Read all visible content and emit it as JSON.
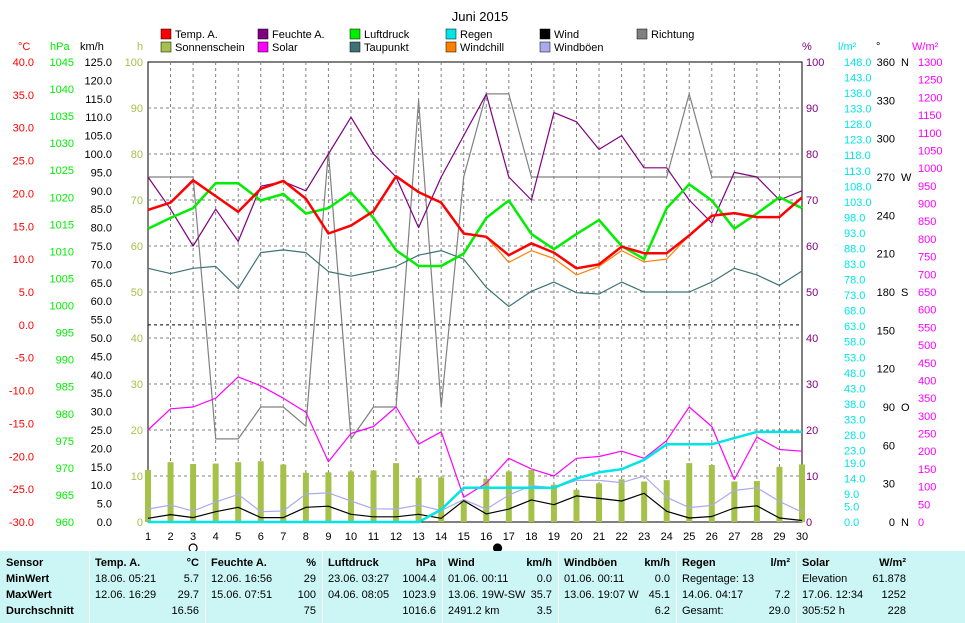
{
  "title": "Juni 2015",
  "colors": {
    "temp": "#ff0000",
    "humidity": "#800080",
    "pressure": "#00ee00",
    "rain": "#00e5e5",
    "wind": "#000000",
    "direction": "#808080",
    "sunshine": "#a6c14a",
    "solar": "#ff00ff",
    "dewpoint": "#3d7373",
    "windchill": "#ff8000",
    "gusts": "#aaaaee",
    "stats_bg": "#ccf6f6"
  },
  "legend": [
    {
      "key": "temp",
      "label": "Temp. A."
    },
    {
      "key": "humidity",
      "label": "Feuchte A."
    },
    {
      "key": "pressure",
      "label": "Luftdruck"
    },
    {
      "key": "rain",
      "label": "Regen"
    },
    {
      "key": "wind",
      "label": "Wind"
    },
    {
      "key": "direction",
      "label": "Richtung"
    },
    {
      "key": "sunshine",
      "label": "Sonnenschein"
    },
    {
      "key": "solar",
      "label": "Solar"
    },
    {
      "key": "dewpoint",
      "label": "Taupunkt"
    },
    {
      "key": "windchill",
      "label": "Windchill"
    },
    {
      "key": "gusts",
      "label": "Windböen"
    }
  ],
  "chart_data": {
    "type": "line",
    "title": "Juni 2015",
    "x": [
      1,
      2,
      3,
      4,
      5,
      6,
      7,
      8,
      9,
      10,
      11,
      12,
      13,
      14,
      15,
      16,
      17,
      18,
      19,
      20,
      21,
      22,
      23,
      24,
      25,
      26,
      27,
      28,
      29,
      30
    ],
    "xlim": [
      1,
      30
    ],
    "grid": true,
    "moon_phases": [
      {
        "day": 3,
        "phase": "full"
      },
      {
        "day": 16.5,
        "phase": "new"
      }
    ],
    "axes": {
      "temp": {
        "unit": "°C",
        "range": [
          -30,
          40
        ],
        "ticks": [
          40,
          35,
          30,
          25,
          20,
          15,
          10,
          5,
          0,
          -5,
          -10,
          -15,
          -20,
          -25,
          -30
        ],
        "labels": [
          "40.0",
          "35.0",
          "30.0",
          "25.0",
          "20.0",
          "15.0",
          "10.0",
          "5.0",
          "0.0",
          "-5.0",
          "-10.0",
          "-15.0",
          "-20.0",
          "-25.0",
          "-30.0"
        ]
      },
      "pressure": {
        "unit": "hPa",
        "range": [
          960,
          1045
        ],
        "labels": [
          "1045",
          "1040",
          "1035",
          "1030",
          "1025",
          "1020",
          "1015",
          "1010",
          "1005",
          "1000",
          "995",
          "990",
          "985",
          "980",
          "975",
          "970",
          "965",
          "960"
        ]
      },
      "wind": {
        "unit": "km/h",
        "range": [
          0,
          125
        ],
        "labels": [
          "125.0",
          "120.0",
          "115.0",
          "110.0",
          "105.0",
          "100.0",
          "95.0",
          "90.0",
          "85.0",
          "80.0",
          "75.0",
          "70.0",
          "65.0",
          "60.0",
          "55.0",
          "50.0",
          "45.0",
          "40.0",
          "35.0",
          "30.0",
          "25.0",
          "20.0",
          "15.0",
          "10.0",
          "5.0",
          "0.0"
        ]
      },
      "sunshine": {
        "unit": "h",
        "range": [
          0,
          100
        ],
        "labels": [
          "100",
          "90",
          "80",
          "70",
          "60",
          "50",
          "40",
          "30",
          "20",
          "10",
          "0"
        ]
      },
      "humidity": {
        "unit": "%",
        "range": [
          0,
          100
        ],
        "labels": [
          "100",
          "90",
          "80",
          "70",
          "60",
          "50",
          "40",
          "30",
          "20",
          "10",
          "0"
        ]
      },
      "rain": {
        "unit": "l/m²",
        "range": [
          0,
          148
        ],
        "labels": [
          "148.0",
          "143.0",
          "138.0",
          "133.0",
          "128.0",
          "123.0",
          "118.0",
          "113.0",
          "108.0",
          "103.0",
          "98.0",
          "93.0",
          "88.0",
          "83.0",
          "78.0",
          "73.0",
          "68.0",
          "63.0",
          "58.0",
          "53.0",
          "48.0",
          "43.0",
          "38.0",
          "33.0",
          "28.0",
          "23.0",
          "19.0",
          "14.0",
          "9.0",
          "5.0",
          "0.0"
        ]
      },
      "direction": {
        "unit": "°",
        "range": [
          0,
          360
        ],
        "labels": [
          {
            "v": 360,
            "t": "360",
            "d": "N"
          },
          {
            "v": 330,
            "t": "330",
            "d": ""
          },
          {
            "v": 300,
            "t": "300",
            "d": ""
          },
          {
            "v": 270,
            "t": "270",
            "d": "W"
          },
          {
            "v": 240,
            "t": "240",
            "d": ""
          },
          {
            "v": 210,
            "t": "210",
            "d": ""
          },
          {
            "v": 180,
            "t": "180",
            "d": "S"
          },
          {
            "v": 150,
            "t": "150",
            "d": ""
          },
          {
            "v": 120,
            "t": "120",
            "d": ""
          },
          {
            "v": 90,
            "t": "90",
            "d": "O"
          },
          {
            "v": 60,
            "t": "60",
            "d": ""
          },
          {
            "v": 30,
            "t": "30",
            "d": ""
          },
          {
            "v": 0,
            "t": "0",
            "d": "N"
          }
        ]
      },
      "solar": {
        "unit": "W/m²",
        "range": [
          0,
          1300
        ],
        "labels": [
          "1300",
          "1250",
          "1200",
          "1150",
          "1100",
          "1050",
          "1000",
          "950",
          "900",
          "850",
          "800",
          "750",
          "700",
          "650",
          "600",
          "550",
          "500",
          "450",
          "400",
          "350",
          "300",
          "250",
          "200",
          "150",
          "100",
          "50",
          "0"
        ]
      }
    },
    "series": [
      {
        "name": "Temp. A.",
        "key": "temp",
        "axis": "temp",
        "values": [
          17.5,
          18.6,
          22.0,
          19.6,
          17.2,
          20.7,
          21.9,
          19.2,
          13.9,
          15.1,
          17.3,
          22.6,
          20.2,
          18.6,
          13.9,
          13.4,
          10.6,
          12.4,
          11.0,
          8.6,
          9.2,
          11.9,
          10.9,
          10.9,
          13.6,
          16.6,
          17.0,
          16.4,
          16.4,
          19.4
        ]
      },
      {
        "name": "Feuchte A.",
        "key": "humidity",
        "axis": "humidity",
        "values": [
          75,
          68,
          60,
          68,
          61,
          73,
          74,
          72,
          80,
          88,
          80,
          75,
          64,
          75,
          84,
          93,
          75,
          70,
          89,
          87,
          81,
          84,
          77,
          77,
          70,
          65,
          76,
          75,
          70,
          72
        ]
      },
      {
        "name": "Luftdruck",
        "key": "pressure",
        "axis": "pressure",
        "values": [
          1014.2,
          1016.2,
          1018.0,
          1022.6,
          1022.6,
          1019.4,
          1020.6,
          1017.0,
          1018.0,
          1020.9,
          1016.2,
          1010.2,
          1007.3,
          1007.3,
          1009.6,
          1016.2,
          1019.4,
          1013.2,
          1010.4,
          1013.2,
          1015.8,
          1011.0,
          1008.6,
          1018.0,
          1022.4,
          1019.4,
          1014.2,
          1017.0,
          1020.0,
          1018.0
        ]
      },
      {
        "name": "Taupunkt",
        "key": "dewpoint",
        "axis": "temp",
        "values": [
          8.6,
          7.8,
          8.6,
          8.9,
          5.5,
          11.0,
          11.4,
          11.0,
          8.1,
          7.4,
          8.1,
          8.9,
          10.6,
          11.3,
          10.0,
          5.7,
          2.8,
          5.1,
          6.5,
          4.9,
          4.7,
          6.5,
          5.0,
          5.0,
          5.0,
          6.5,
          8.6,
          7.6,
          6.0,
          8.2
        ]
      },
      {
        "name": "Windchill",
        "key": "windchill",
        "axis": "temp",
        "values": [
          17.5,
          18.6,
          22.0,
          19.6,
          17.2,
          20.7,
          21.9,
          19.2,
          13.9,
          15.1,
          17.3,
          22.6,
          20.2,
          18.6,
          13.9,
          13.4,
          9.5,
          11.3,
          10.1,
          7.6,
          8.9,
          11.3,
          9.6,
          10.0,
          13.6,
          16.6,
          17.0,
          16.4,
          16.4,
          19.4
        ]
      },
      {
        "name": "Solar",
        "key": "solar",
        "axis": "solar",
        "values": [
          260,
          320,
          325,
          350,
          410,
          385,
          350,
          310,
          170,
          250,
          270,
          325,
          220,
          255,
          70,
          110,
          180,
          150,
          130,
          180,
          185,
          200,
          180,
          230,
          325,
          270,
          120,
          240,
          205,
          200
        ]
      },
      {
        "name": "Wind",
        "key": "wind",
        "axis": "wind",
        "values": [
          1.0,
          2.0,
          1.2,
          2.8,
          4.0,
          1.2,
          1.2,
          4.0,
          4.3,
          2.1,
          1.4,
          1.4,
          2.1,
          1.0,
          5.8,
          2.2,
          3.5,
          6.0,
          4.7,
          7.1,
          6.4,
          5.7,
          7.8,
          2.9,
          1.1,
          1.5,
          3.8,
          4.4,
          1.1,
          0.4
        ]
      },
      {
        "name": "Windböen",
        "key": "gusts",
        "axis": "wind",
        "values": [
          3.5,
          4.6,
          3.0,
          5.4,
          7.5,
          2.8,
          3.0,
          7.6,
          7.9,
          5.7,
          3.6,
          3.5,
          4.6,
          3.1,
          6.1,
          3.5,
          7.3,
          9.9,
          9.3,
          11.3,
          11.3,
          10.7,
          12.5,
          6.7,
          3.9,
          4.5,
          8.6,
          9.3,
          5.6,
          2.7
        ]
      },
      {
        "name": "Richtung",
        "key": "direction",
        "axis": "direction",
        "values": [
          270,
          270,
          270,
          65,
          65,
          90,
          90,
          75,
          290,
          65,
          90,
          90,
          330,
          90,
          270,
          335,
          335,
          270,
          270,
          270,
          270,
          270,
          270,
          270,
          335,
          270,
          270,
          270,
          270,
          270
        ]
      },
      {
        "name": "Regen",
        "key": "rain",
        "axis": "rain",
        "values": [
          0,
          0,
          0,
          0,
          0,
          0,
          0,
          0,
          0,
          0,
          0,
          0,
          0,
          4,
          11,
          11,
          11,
          11,
          11,
          14,
          16,
          17,
          20,
          25,
          25,
          25,
          27,
          29,
          29,
          29
        ]
      },
      {
        "name": "Sonnenschein",
        "key": "sunshine",
        "axis": "sunshine",
        "type": "bar",
        "values": [
          11.3,
          13.0,
          12.6,
          12.7,
          13.0,
          13.2,
          12.5,
          10.7,
          10.8,
          11.0,
          11.2,
          12.8,
          9.6,
          9.7,
          4.5,
          9.4,
          11.0,
          11.3,
          8.1,
          7.0,
          8.4,
          9.3,
          8.8,
          9.1,
          12.8,
          12.4,
          8.8,
          8.9,
          12.0,
          12.5
        ]
      }
    ]
  },
  "stats": {
    "columns": [
      {
        "header": "Sensor",
        "rows": [
          "MinWert",
          "MaxWert",
          "Durchschnitt"
        ]
      },
      {
        "header": "Temp. A.",
        "unit": "°C",
        "rows": [
          {
            "when": "18.06.  05:21",
            "val": "5.7"
          },
          {
            "when": "12.06.  16:29",
            "val": "29.7"
          },
          {
            "when": "",
            "val": "16.56"
          }
        ]
      },
      {
        "header": "Feuchte A.",
        "unit": "%",
        "rows": [
          {
            "when": "12.06.  16:56",
            "val": "29"
          },
          {
            "when": "15.06.  07:51",
            "val": "100"
          },
          {
            "when": "",
            "val": "75"
          }
        ]
      },
      {
        "header": "Luftdruck",
        "unit": "hPa",
        "rows": [
          {
            "when": "23.06.  03:27",
            "val": "1004.4"
          },
          {
            "when": "04.06.  08:05",
            "val": "1023.9"
          },
          {
            "when": "",
            "val": "1016.6"
          }
        ]
      },
      {
        "header": "Wind",
        "unit": "km/h",
        "rows": [
          {
            "when": "01.06.  00:11",
            "val": "0.0"
          },
          {
            "when": "13.06.  19W-SW",
            "val": "35.7"
          },
          {
            "when": "2491.2 km",
            "val": "3.5"
          }
        ]
      },
      {
        "header": "Windböen",
        "unit": "km/h",
        "rows": [
          {
            "when": "01.06.  00:11",
            "val": "0.0"
          },
          {
            "when": "13.06.  19:07  W",
            "val": "45.1"
          },
          {
            "when": "",
            "val": "6.2"
          }
        ]
      },
      {
        "header": "Regen",
        "unit": "l/m²",
        "rows": [
          {
            "when": "Regentage: 13",
            "val": ""
          },
          {
            "when": "14.06.  04:17",
            "val": "7.2"
          },
          {
            "when": "Gesamt:",
            "val": "29.0"
          }
        ]
      },
      {
        "header": "Solar",
        "unit": "W/m²",
        "rows": [
          {
            "when": "Elevation",
            "val": "61.878"
          },
          {
            "when": "17.06.  12:34",
            "val": "1252"
          },
          {
            "when": "305:52 h",
            "val": "228"
          }
        ]
      }
    ]
  }
}
